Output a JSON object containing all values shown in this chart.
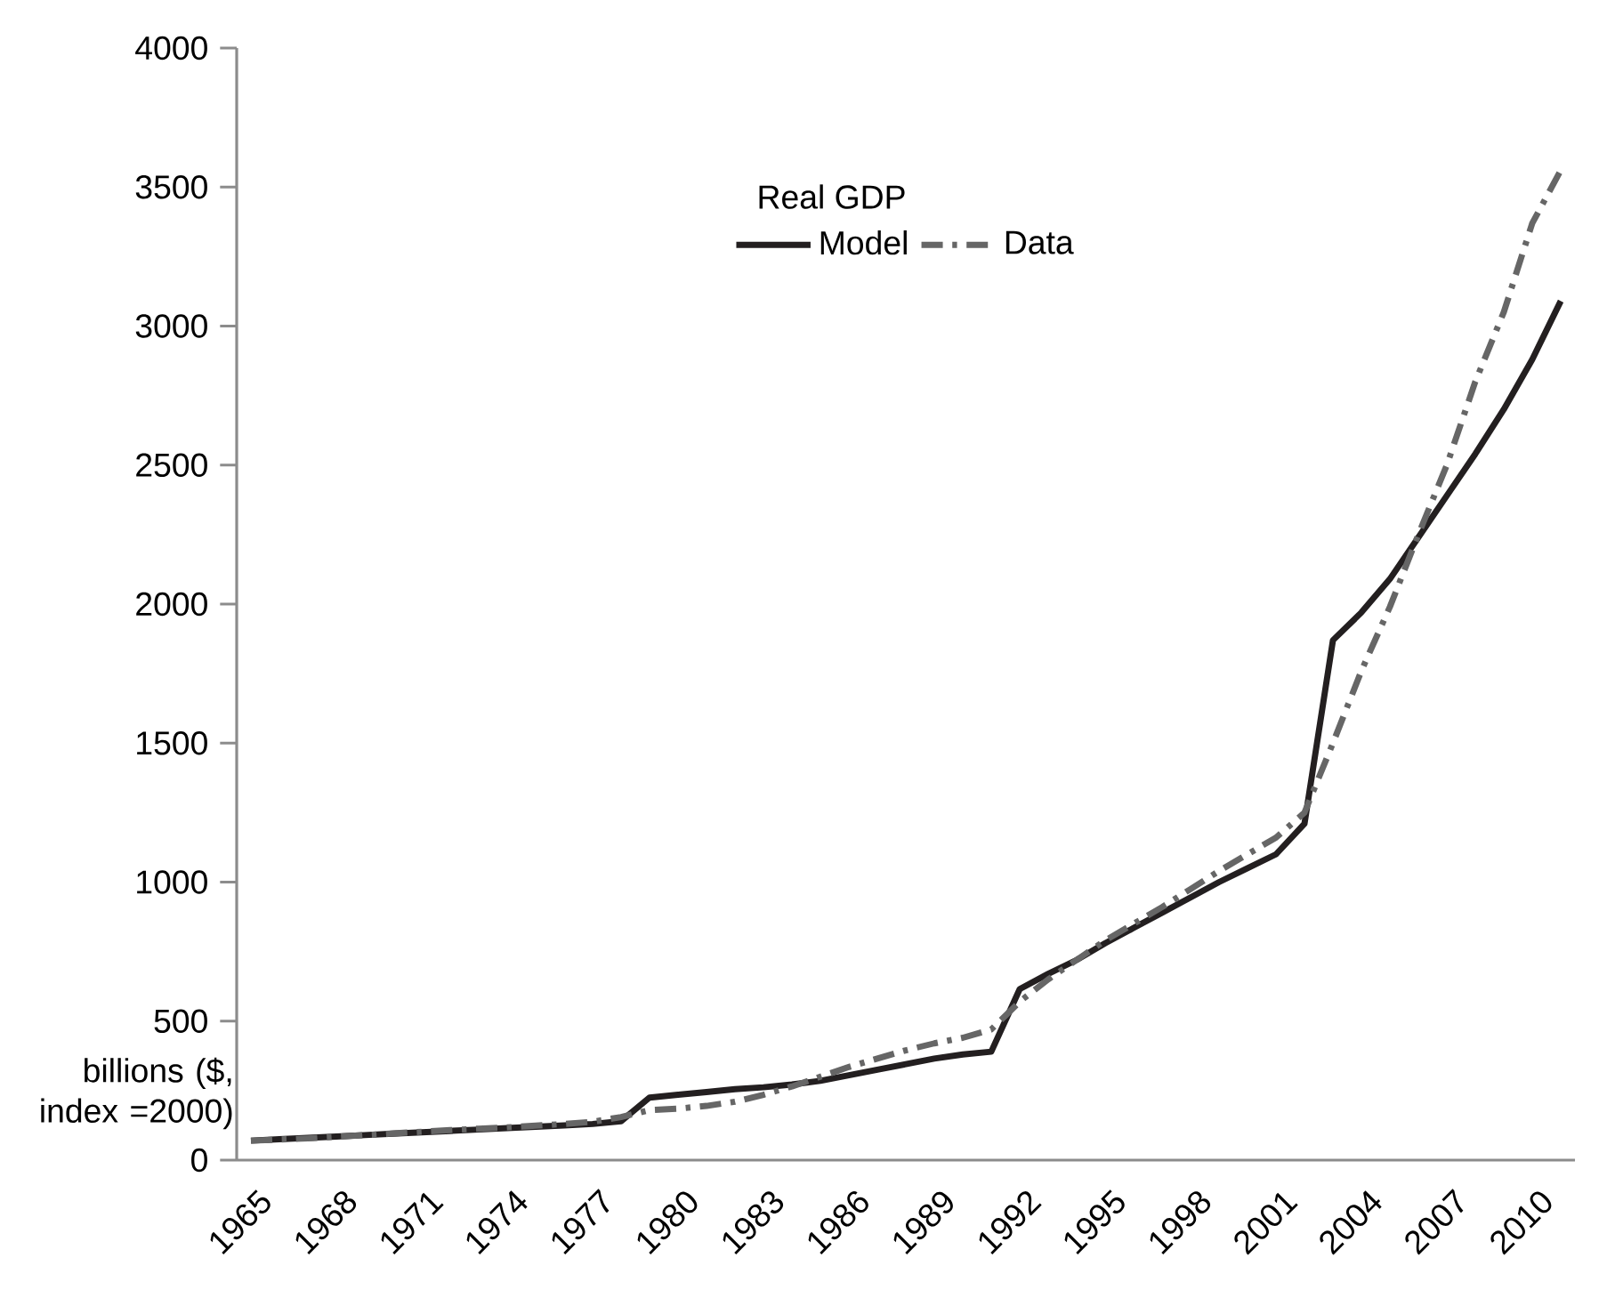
{
  "chart_data": {
    "type": "line",
    "categories": [
      "1965",
      null,
      null,
      "1968",
      null,
      null,
      "1971",
      null,
      null,
      "1974",
      null,
      null,
      "1977",
      null,
      null,
      "1980",
      null,
      null,
      "1983",
      null,
      null,
      "1986",
      null,
      null,
      "1989",
      null,
      null,
      "1992",
      null,
      null,
      "1995",
      null,
      null,
      "1998",
      null,
      null,
      "2001",
      null,
      null,
      "2004",
      null,
      null,
      "2007",
      null,
      null,
      "2010",
      null
    ],
    "ylabel": "billions ($, index =2000)",
    "legend_title": "Real GDP",
    "legend": "top",
    "ylim": [
      0,
      4000
    ],
    "yticks": [
      0,
      500,
      1000,
      1500,
      2000,
      2500,
      3000,
      3500,
      4000
    ],
    "series": [
      {
        "name": "Model",
        "color": "#231f20",
        "line_style": "solid",
        "values": [
          70,
          75,
          80,
          85,
          90,
          95,
          100,
          105,
          110,
          115,
          120,
          125,
          130,
          140,
          225,
          235,
          245,
          255,
          262,
          272,
          285,
          305,
          325,
          345,
          365,
          380,
          390,
          615,
          670,
          720,
          780,
          835,
          890,
          945,
          1000,
          1050,
          1100,
          1210,
          1870,
          1970,
          2090,
          2240,
          2390,
          2540,
          2700,
          2880,
          3090
        ]
      },
      {
        "name": "Data",
        "color": "#666666",
        "line_style": "dashdot",
        "values": [
          70,
          74,
          78,
          84,
          90,
          96,
          102,
          108,
          113,
          118,
          124,
          130,
          138,
          155,
          180,
          185,
          195,
          210,
          235,
          265,
          300,
          335,
          365,
          395,
          420,
          440,
          470,
          570,
          650,
          720,
          790,
          850,
          910,
          975,
          1040,
          1100,
          1160,
          1250,
          1500,
          1760,
          1990,
          2250,
          2500,
          2800,
          3050,
          3370,
          3560
        ]
      }
    ]
  }
}
